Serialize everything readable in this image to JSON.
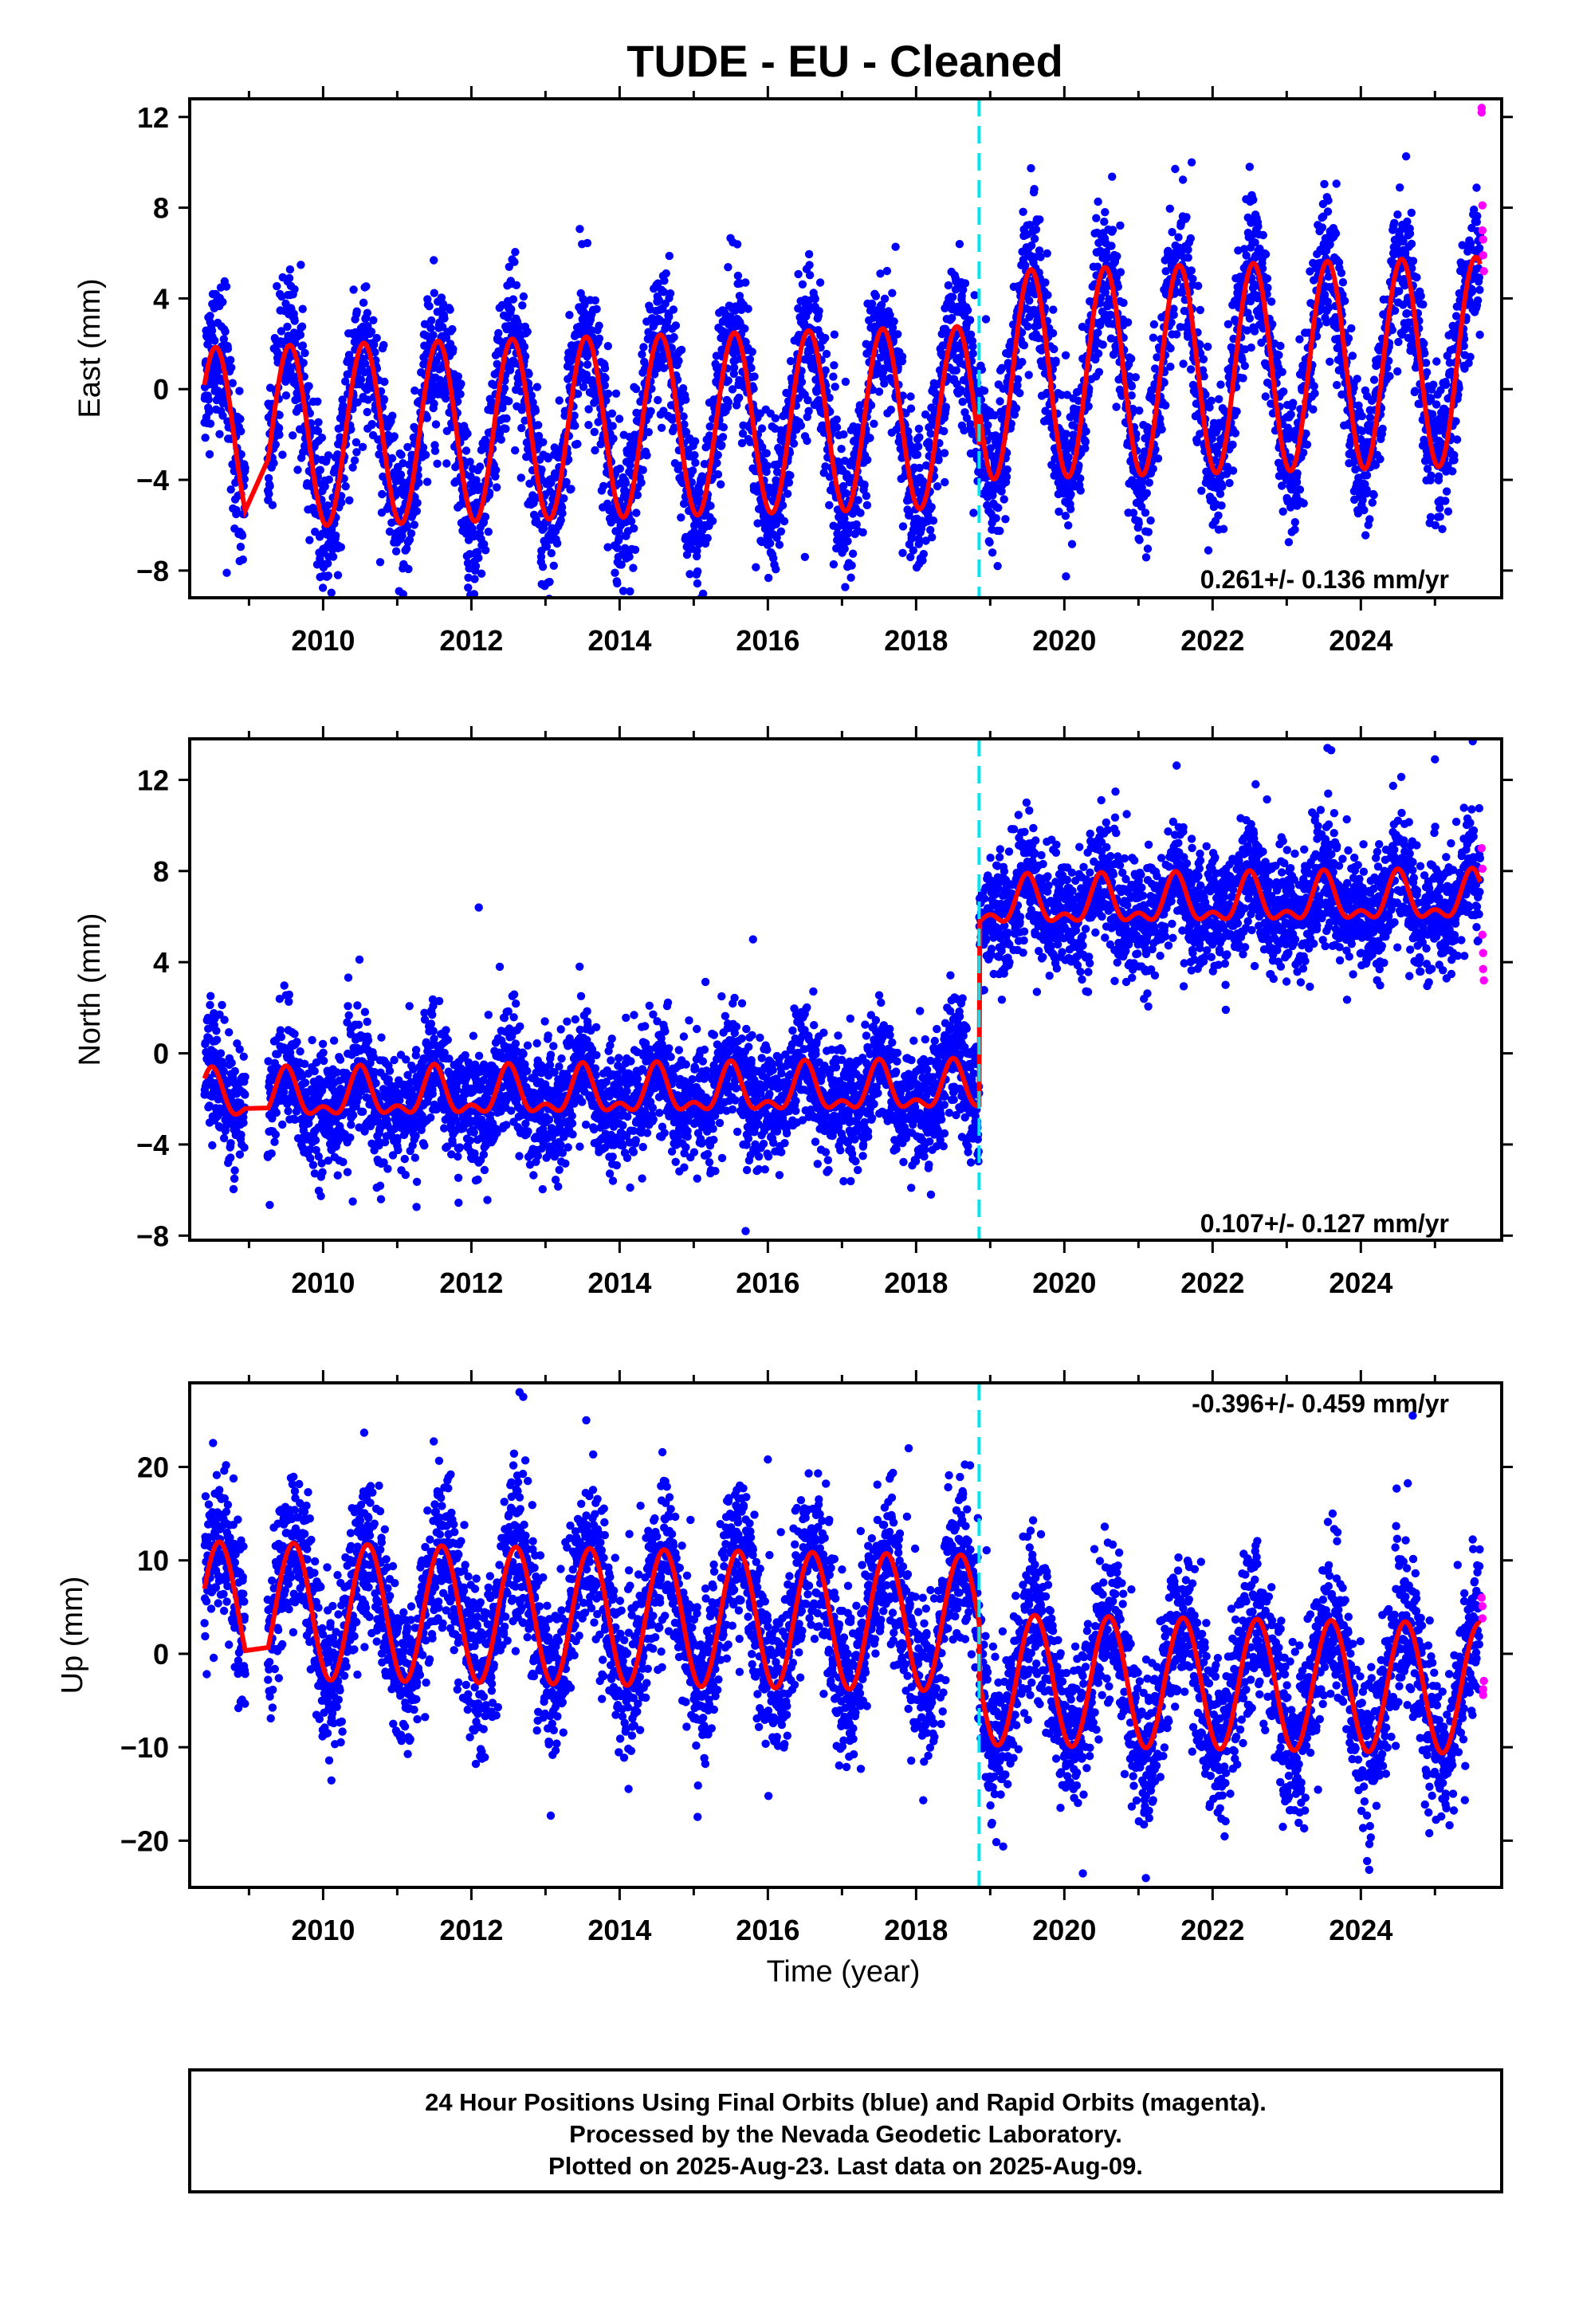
{
  "title": "TUDE  - EU - Cleaned",
  "xlabel": "Time (year)",
  "footer": {
    "line1": "24 Hour Positions Using Final Orbits (blue) and Rapid Orbits (magenta).",
    "line2": "Processed by the Nevada Geodetic Laboratory.",
    "line3": "Plotted on 2025-Aug-23. Last data on 2025-Aug-09."
  },
  "colors": {
    "final_orbits": "#0000ff",
    "rapid_orbits": "#ff00ff",
    "model_fit": "#ff0000",
    "offset_marker": "#00e5ee",
    "frame": "#000000"
  },
  "chart_data": [
    {
      "type": "scatter",
      "component": "east",
      "ylabel": "East (mm)",
      "rate_text": "0.261+/- 0.136 mm/yr",
      "xlim": [
        2008.2,
        2025.9
      ],
      "ylim": [
        -9.2,
        12.8
      ],
      "yticks": [
        -8,
        -4,
        0,
        4,
        8,
        12
      ],
      "xticks": [
        2010,
        2012,
        2014,
        2016,
        2018,
        2020,
        2022,
        2024
      ],
      "data_start": 2008.4,
      "data_end": 2025.61,
      "data_gap": [
        2008.95,
        2009.25
      ],
      "offset_epoch": 2018.85,
      "model": {
        "mean_before": -1.7,
        "mean_after": 0.9,
        "amplitude_before": 4.0,
        "amplitude_after": 4.6,
        "annual_phase_peak": 0.55,
        "semiannual_amp": 0.0,
        "rate": 0.261,
        "offset": 0.0
      },
      "scatter_sigma": 1.6,
      "outliers": [
        [
          2008.7,
          -8.1
        ],
        [
          2010.2,
          -8.2
        ],
        [
          2012.95,
          -8.6
        ],
        [
          2014.05,
          -8.9
        ],
        [
          2022.5,
          9.8
        ],
        [
          2016.5,
          -7.4
        ],
        [
          2019.1,
          -7.8
        ]
      ],
      "rapid_points": [
        [
          2025.63,
          12.4
        ],
        [
          2025.63,
          12.2
        ],
        [
          2025.64,
          8.1
        ],
        [
          2025.64,
          7.0
        ],
        [
          2025.65,
          6.6
        ],
        [
          2025.65,
          5.9
        ],
        [
          2025.66,
          5.2
        ]
      ]
    },
    {
      "type": "scatter",
      "component": "north",
      "ylabel": "North (mm)",
      "rate_text": "0.107+/- 0.127 mm/yr",
      "xlim": [
        2008.2,
        2025.9
      ],
      "ylim": [
        -8.2,
        13.8
      ],
      "yticks": [
        -8,
        -4,
        0,
        4,
        8,
        12
      ],
      "xticks": [
        2010,
        2012,
        2014,
        2016,
        2018,
        2020,
        2022,
        2024
      ],
      "data_start": 2008.4,
      "data_end": 2025.61,
      "data_gap": [
        2008.95,
        2009.25
      ],
      "offset_epoch": 2018.85,
      "model": {
        "mean_before": -1.8,
        "mean_after": 6.6,
        "amplitude_before": 0.9,
        "amplitude_after": 0.9,
        "annual_phase_peak": 0.5,
        "semiannual_amp": 0.5,
        "rate": 0.107,
        "offset": 8.4
      },
      "scatter_sigma": 1.3,
      "outliers": [
        [
          2012.1,
          6.4
        ],
        [
          2015.8,
          5.0
        ],
        [
          2015.7,
          -7.8
        ],
        [
          2023.55,
          13.4
        ],
        [
          2023.6,
          13.3
        ],
        [
          2025.0,
          12.9
        ],
        [
          2010.4,
          -6.5
        ],
        [
          2018.2,
          -6.2
        ]
      ],
      "rapid_points": [
        [
          2025.63,
          9.0
        ],
        [
          2025.64,
          8.1
        ],
        [
          2025.64,
          5.2
        ],
        [
          2025.65,
          4.4
        ],
        [
          2025.65,
          3.7
        ],
        [
          2025.66,
          3.2
        ]
      ]
    },
    {
      "type": "scatter",
      "component": "up",
      "ylabel": "Up (mm)",
      "rate_text": "-0.396+/- 0.459 mm/yr",
      "xlim": [
        2008.2,
        2025.9
      ],
      "ylim": [
        -25,
        29
      ],
      "yticks": [
        -20,
        -10,
        0,
        10,
        20
      ],
      "xticks": [
        2010,
        2012,
        2014,
        2016,
        2018,
        2020,
        2022,
        2024
      ],
      "data_start": 2008.4,
      "data_end": 2025.61,
      "data_gap": [
        2008.95,
        2009.25
      ],
      "offset_epoch": 2018.85,
      "model": {
        "mean_before": 4.0,
        "mean_after": -3.2,
        "amplitude_before": 7.3,
        "amplitude_after": 7.0,
        "annual_phase_peak": 0.6,
        "semiannual_amp": 0.0,
        "rate": -0.396,
        "offset": -6.8
      },
      "scatter_sigma": 4.2,
      "outliers": [
        [
          2012.65,
          28.0
        ],
        [
          2012.7,
          27.5
        ],
        [
          2013.55,
          25.0
        ],
        [
          2024.7,
          25.5
        ],
        [
          2020.25,
          -23.5
        ],
        [
          2021.1,
          -24.0
        ],
        [
          2016.0,
          20.8
        ],
        [
          2017.9,
          22.0
        ]
      ],
      "rapid_points": [
        [
          2025.63,
          6.0
        ],
        [
          2025.64,
          5.1
        ],
        [
          2025.64,
          3.8
        ],
        [
          2025.65,
          -3.8
        ],
        [
          2025.65,
          -4.4
        ],
        [
          2025.66,
          -2.9
        ]
      ]
    }
  ]
}
